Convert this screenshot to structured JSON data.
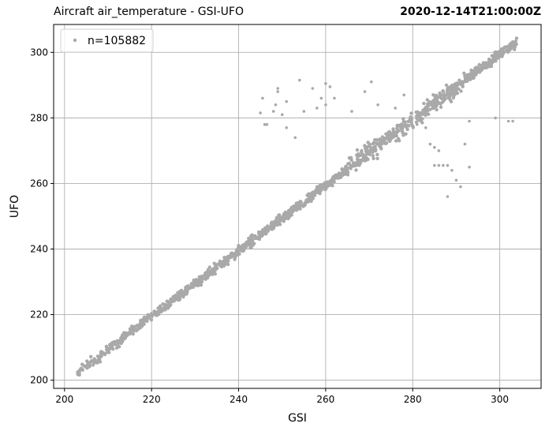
{
  "title_left": "Aircraft air_temperature - GSI-UFO",
  "title_right": "2020-12-14T21:00:00Z",
  "chart_data": {
    "type": "scatter",
    "xlabel": "GSI",
    "ylabel": "UFO",
    "xlim": [
      197.5,
      309.5
    ],
    "ylim": [
      197.5,
      308.5
    ],
    "xticks": [
      200,
      220,
      240,
      260,
      280,
      300
    ],
    "yticks": [
      200,
      220,
      240,
      260,
      280,
      300
    ],
    "grid": true,
    "legend": {
      "location": "top-left",
      "entries": [
        "n=105882"
      ]
    },
    "series_color": "#a9a9a9",
    "series": [
      {
        "name": "n=105882",
        "trend": {
          "x_range": [
            203,
            304
          ],
          "relation": "y ≈ x"
        },
        "outliers": [
          [
            245,
            281.5
          ],
          [
            245.5,
            286
          ],
          [
            246,
            278
          ],
          [
            246.5,
            278
          ],
          [
            248,
            282
          ],
          [
            248.5,
            284
          ],
          [
            249,
            289
          ],
          [
            249,
            288
          ],
          [
            250,
            281
          ],
          [
            251,
            285
          ],
          [
            251,
            277
          ],
          [
            253,
            274
          ],
          [
            254,
            291.5
          ],
          [
            255,
            282
          ],
          [
            257,
            289
          ],
          [
            258,
            283
          ],
          [
            259,
            286
          ],
          [
            260,
            290.5
          ],
          [
            260,
            284
          ],
          [
            261,
            289.5
          ],
          [
            262,
            286
          ],
          [
            266,
            282
          ],
          [
            269,
            288
          ],
          [
            270.5,
            291
          ],
          [
            272,
            284
          ],
          [
            276,
            283
          ],
          [
            278,
            287
          ],
          [
            281,
            278
          ],
          [
            282,
            279
          ],
          [
            283,
            277
          ],
          [
            285,
            265.5
          ],
          [
            286,
            265.5
          ],
          [
            287,
            265.5
          ],
          [
            288,
            265.5
          ],
          [
            288,
            256
          ],
          [
            289,
            264
          ],
          [
            290,
            261
          ],
          [
            291,
            259
          ],
          [
            292,
            272
          ],
          [
            293,
            279
          ],
          [
            293,
            265
          ],
          [
            299,
            280
          ],
          [
            302,
            279
          ],
          [
            303,
            279
          ],
          [
            284,
            272
          ],
          [
            285,
            271
          ],
          [
            286,
            270
          ]
        ]
      }
    ]
  }
}
